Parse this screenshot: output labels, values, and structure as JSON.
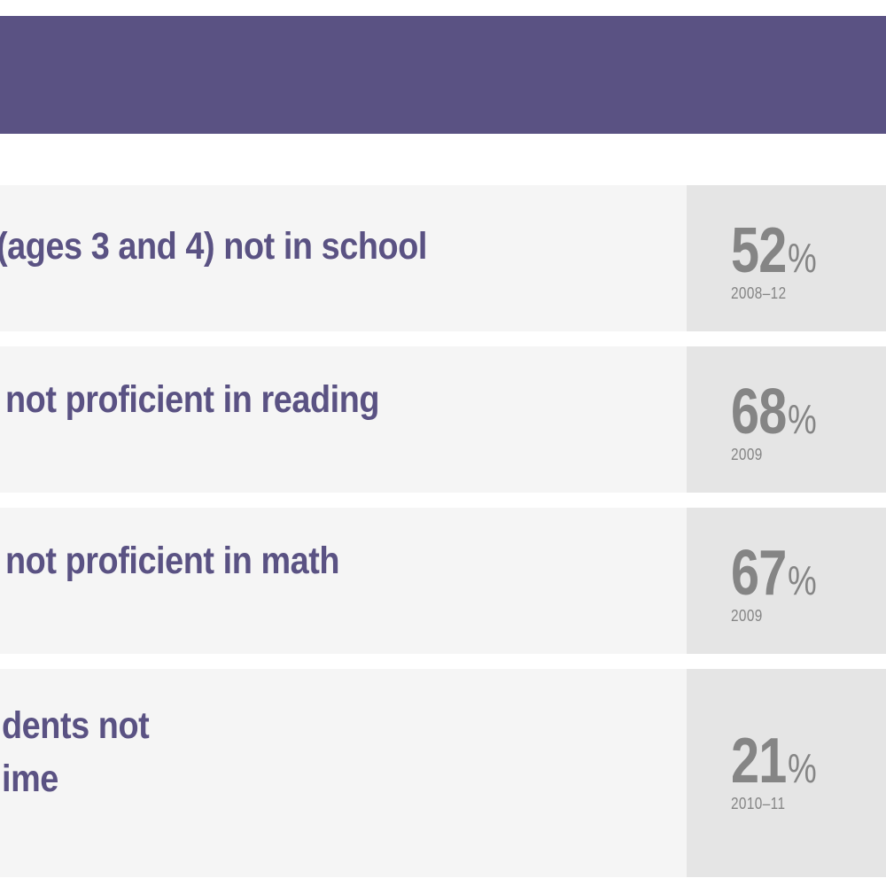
{
  "header": {
    "color": "#5a5283"
  },
  "rows": [
    {
      "label_lines": [
        "(ages 3 and 4) not in school"
      ],
      "value": "52",
      "unit": "%",
      "year": "2008–12"
    },
    {
      "label_lines": [
        "not proficient in reading"
      ],
      "value": "68",
      "unit": "%",
      "year": "2009"
    },
    {
      "label_lines": [
        "not proficient in math"
      ],
      "value": "67",
      "unit": "%",
      "year": "2009"
    },
    {
      "label_lines": [
        "dents not",
        "ime"
      ],
      "value": "21",
      "unit": "%",
      "year": "2010–11"
    }
  ],
  "colors": {
    "label_text": "#5a5283",
    "value_text": "#858585",
    "label_bg": "#f5f5f5",
    "value_bg": "#e5e5e5"
  }
}
